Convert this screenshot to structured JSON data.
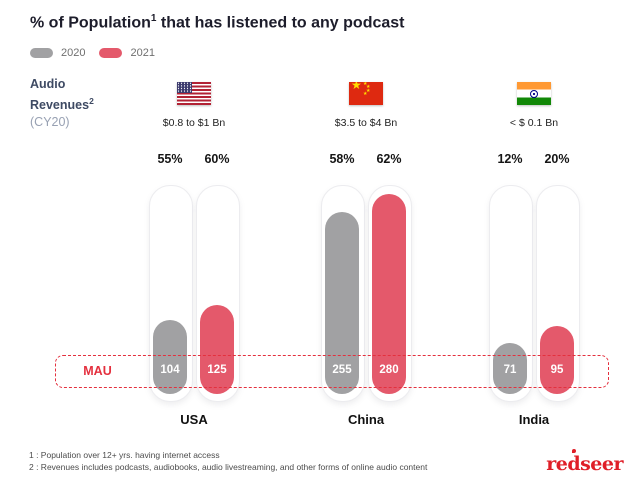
{
  "header": {
    "title": {
      "part1": "% of Population",
      "sup": "1",
      "part2": " that has listened to any podcast"
    },
    "legend": [
      {
        "label": "2020",
        "color": "#a1a1a3"
      },
      {
        "label": "2021",
        "color": "#e4596b"
      }
    ]
  },
  "revenue_label": {
    "line1": "Audio",
    "line2": "Revenues",
    "sup": "2",
    "line3": "(CY20)"
  },
  "chart_data": {
    "type": "bar",
    "title": "% of Population that has listened to any podcast",
    "categories": [
      "USA",
      "China",
      "India"
    ],
    "series": [
      {
        "name": "2020",
        "color": "#a1a1a3",
        "percent_values": [
          55,
          58,
          12
        ],
        "mau_values": [
          104,
          255,
          71
        ]
      },
      {
        "name": "2021",
        "color": "#e4596b",
        "percent_values": [
          60,
          62,
          20
        ],
        "mau_values": [
          125,
          280,
          95
        ]
      }
    ],
    "mau_band_label": "MAU",
    "mau_scale_max": 280,
    "legend_position": "top-left",
    "grid": false,
    "countries": [
      {
        "name": "USA",
        "flag": "us",
        "revenue": "$0.8 to $1 Bn",
        "pct2020": "55%",
        "pct2021": "60%",
        "mau2020": "104",
        "mau2021": "125"
      },
      {
        "name": "China",
        "flag": "cn",
        "revenue": "$3.5 to $4 Bn",
        "pct2020": "58%",
        "pct2021": "62%",
        "mau2020": "255",
        "mau2021": "280"
      },
      {
        "name": "India",
        "flag": "in",
        "revenue": "< $ 0.1 Bn",
        "pct2020": "12%",
        "pct2021": "20%",
        "mau2020": "71",
        "mau2021": "95"
      }
    ]
  },
  "footnotes": [
    "1 : Population over 12+ yrs. having internet access",
    "2 : Revenues includes podcasts, audiobooks, audio livestreaming, and other forms of online audio content"
  ],
  "logo": "redseer",
  "colors": {
    "bar_2020": "#a1a1a3",
    "bar_2021": "#e4596b",
    "mau_red": "#e4303e",
    "title_text": "#1d1d2b",
    "revenue_label_dark": "#3e4a63",
    "revenue_label_light": "#98a1b3",
    "logo_red": "#df1f28"
  }
}
